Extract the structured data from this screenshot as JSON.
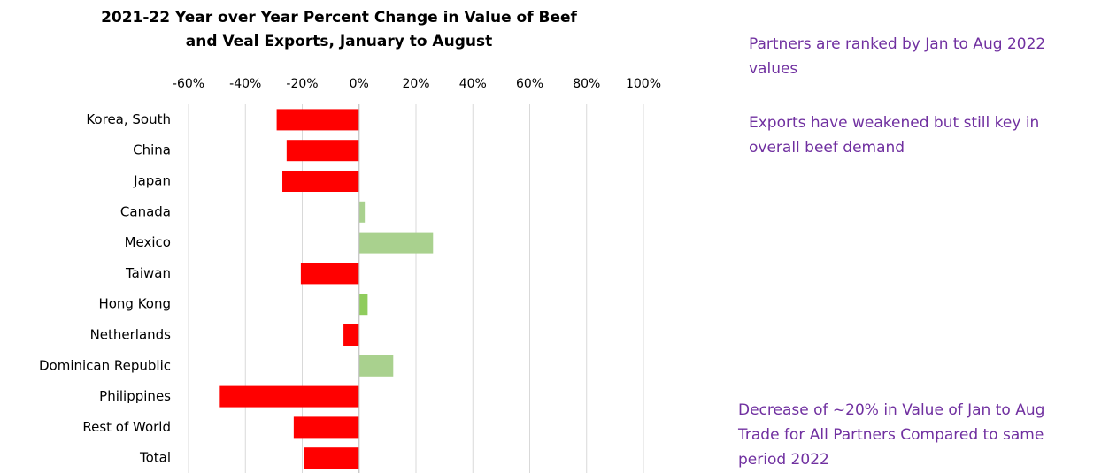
{
  "chart_data": {
    "type": "barh",
    "title_lines": [
      "2021-22 Year over Year Percent Change in Value of Beef",
      "and Veal Exports, January to August"
    ],
    "categories": [
      "Korea, South",
      "China",
      "Japan",
      "Canada",
      "Mexico",
      "Taiwan",
      "Hong Kong",
      "Netherlands",
      "Dominican Republic",
      "Philippines",
      "Rest of World",
      "Total"
    ],
    "values": [
      -29,
      -25.5,
      -27,
      2,
      26,
      -20.5,
      3,
      -5.5,
      12,
      -49,
      -23,
      -19.5
    ],
    "colors": [
      "#ff0000",
      "#ff0000",
      "#ff0000",
      "#a9d18e",
      "#a9d18e",
      "#ff0000",
      "#8fcc5c",
      "#ff0000",
      "#a9d18e",
      "#ff0000",
      "#ff0000",
      "#ff0000"
    ],
    "xlim": [
      -60,
      100
    ],
    "xticks": [
      {
        "value": -60,
        "label": "-60%"
      },
      {
        "value": -40,
        "label": "-40%"
      },
      {
        "value": -20,
        "label": "-20%"
      },
      {
        "value": 0,
        "label": "0%"
      },
      {
        "value": 20,
        "label": "20%"
      },
      {
        "value": 40,
        "label": "40%"
      },
      {
        "value": 60,
        "label": "60%"
      },
      {
        "value": 80,
        "label": "80%"
      },
      {
        "value": 100,
        "label": "100%"
      }
    ],
    "grid": true,
    "annotations": [
      {
        "lines": [
          "Partners are ranked by Jan to Aug 2022",
          "values"
        ]
      },
      {
        "lines": [
          "Exports have weakened but still key in",
          "overall beef demand"
        ]
      },
      {
        "lines": [
          "Decrease of ~20% in Value of Jan to Aug",
          "Trade for All Partners Compared to same",
          "period 2022"
        ]
      }
    ]
  }
}
